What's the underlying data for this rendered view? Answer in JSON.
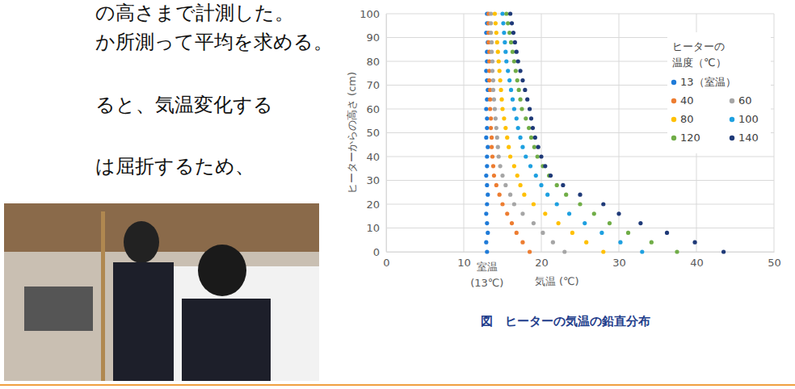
{
  "side_text": [
    "の高さまで計測した。",
    "か所測って平均を求める。",
    "ると、気温変化する",
    "は屈折するため、"
  ],
  "chart_data": {
    "type": "scatter",
    "title": "図　ヒーターの気温の鉛直分布",
    "x_label": "気温 (℃)",
    "y_label": "ヒーターからの高さ (cm)",
    "legend_title": [
      "ヒーターの",
      "温度（℃）"
    ],
    "xlim": [
      0,
      50
    ],
    "xticks": [
      0,
      10,
      20,
      30,
      40,
      50
    ],
    "ylim": [
      0,
      100
    ],
    "yticks": [
      0,
      10,
      20,
      30,
      40,
      50,
      60,
      70,
      80,
      90,
      100
    ],
    "grid": true,
    "legend": "upper right",
    "marker": "circle",
    "annotations": [
      {
        "text": "室温",
        "x": 13
      },
      {
        "text": "(13℃)",
        "x": 13
      }
    ],
    "series": [
      {
        "name": "13（室温）",
        "color": "#1f7bd8",
        "x": [
          13.0,
          12.9,
          13.1,
          13.0,
          12.9,
          13.0,
          13.1,
          13.0,
          12.9,
          13.0,
          13.0,
          13.1,
          12.9,
          13.0,
          13.0,
          12.9,
          13.0,
          13.1,
          13.0,
          12.9,
          13.0,
          13.0,
          13.1,
          12.9,
          13.0,
          13.0
        ],
        "values": [
          0,
          4,
          8,
          12,
          16,
          20,
          24,
          28,
          32,
          36,
          40,
          44,
          48,
          52,
          56,
          60,
          64,
          68,
          72,
          76,
          80,
          84,
          88,
          92,
          96,
          100
        ]
      },
      {
        "name": "40",
        "color": "#ed7d31",
        "x": [
          18.5,
          17.6,
          16.8,
          16.2,
          15.6,
          15.0,
          14.6,
          14.2,
          13.9,
          13.8,
          13.7,
          13.6,
          13.6,
          13.5,
          13.5,
          13.4,
          13.4,
          13.4,
          13.3,
          13.3,
          13.3,
          13.3,
          13.2,
          13.2,
          13.2,
          13.2
        ],
        "values": [
          0,
          4,
          8,
          12,
          16,
          20,
          24,
          28,
          32,
          36,
          40,
          44,
          48,
          52,
          56,
          60,
          64,
          68,
          72,
          76,
          80,
          84,
          88,
          92,
          96,
          100
        ]
      },
      {
        "name": "60",
        "color": "#a5a5a5",
        "x": [
          23.0,
          21.5,
          20.2,
          19.0,
          17.6,
          16.5,
          16.0,
          15.4,
          15.0,
          14.7,
          14.5,
          14.4,
          14.3,
          14.2,
          14.1,
          14.0,
          13.9,
          13.8,
          13.8,
          13.7,
          13.7,
          13.6,
          13.6,
          13.5,
          13.5,
          13.5
        ],
        "values": [
          0,
          4,
          8,
          12,
          16,
          20,
          24,
          28,
          32,
          36,
          40,
          44,
          48,
          52,
          56,
          60,
          64,
          68,
          72,
          76,
          80,
          84,
          88,
          92,
          96,
          100
        ]
      },
      {
        "name": "80",
        "color": "#ffc000",
        "x": [
          28.0,
          25.8,
          24.0,
          22.2,
          20.5,
          19.0,
          17.8,
          17.3,
          16.9,
          16.5,
          16.0,
          15.8,
          15.6,
          15.4,
          15.2,
          15.0,
          14.9,
          14.8,
          14.7,
          14.6,
          14.5,
          14.4,
          14.3,
          14.2,
          14.1,
          14.0
        ],
        "values": [
          0,
          4,
          8,
          12,
          16,
          20,
          24,
          28,
          32,
          36,
          40,
          44,
          48,
          52,
          56,
          60,
          64,
          68,
          72,
          76,
          80,
          84,
          88,
          92,
          96,
          100
        ]
      },
      {
        "name": "100",
        "color": "#1ea0e0",
        "x": [
          33.0,
          30.2,
          27.8,
          25.6,
          23.6,
          22.0,
          20.8,
          20.0,
          19.3,
          18.6,
          18.0,
          17.6,
          17.3,
          17.0,
          16.8,
          16.5,
          16.3,
          16.1,
          15.9,
          15.7,
          15.5,
          15.4,
          15.3,
          15.2,
          15.1,
          15.0
        ],
        "values": [
          0,
          4,
          8,
          12,
          16,
          20,
          24,
          28,
          32,
          36,
          40,
          44,
          48,
          52,
          56,
          60,
          64,
          68,
          72,
          76,
          80,
          84,
          88,
          92,
          96,
          100
        ]
      },
      {
        "name": "120",
        "color": "#70ad47",
        "x": [
          37.5,
          34.2,
          31.2,
          28.8,
          26.8,
          25.0,
          23.2,
          22.0,
          21.0,
          20.2,
          19.5,
          19.1,
          18.7,
          18.4,
          18.0,
          17.5,
          17.3,
          17.1,
          16.9,
          16.7,
          16.5,
          16.3,
          16.1,
          15.9,
          15.7,
          15.5
        ],
        "values": [
          0,
          4,
          8,
          12,
          16,
          20,
          24,
          28,
          32,
          36,
          40,
          44,
          48,
          52,
          56,
          60,
          64,
          68,
          72,
          76,
          80,
          84,
          88,
          92,
          96,
          100
        ]
      },
      {
        "name": "140",
        "color": "#1f3a78",
        "x": [
          43.5,
          39.8,
          36.2,
          32.8,
          30.0,
          28.0,
          25.0,
          22.8,
          21.2,
          20.5,
          20.0,
          19.6,
          19.2,
          18.9,
          18.7,
          18.5,
          18.2,
          17.9,
          17.6,
          17.3,
          17.0,
          16.8,
          16.6,
          16.4,
          16.2,
          16.0
        ],
        "values": [
          0,
          4,
          8,
          12,
          16,
          20,
          24,
          28,
          32,
          36,
          40,
          44,
          48,
          52,
          56,
          60,
          64,
          68,
          72,
          76,
          80,
          84,
          88,
          92,
          96,
          100
        ]
      }
    ]
  }
}
